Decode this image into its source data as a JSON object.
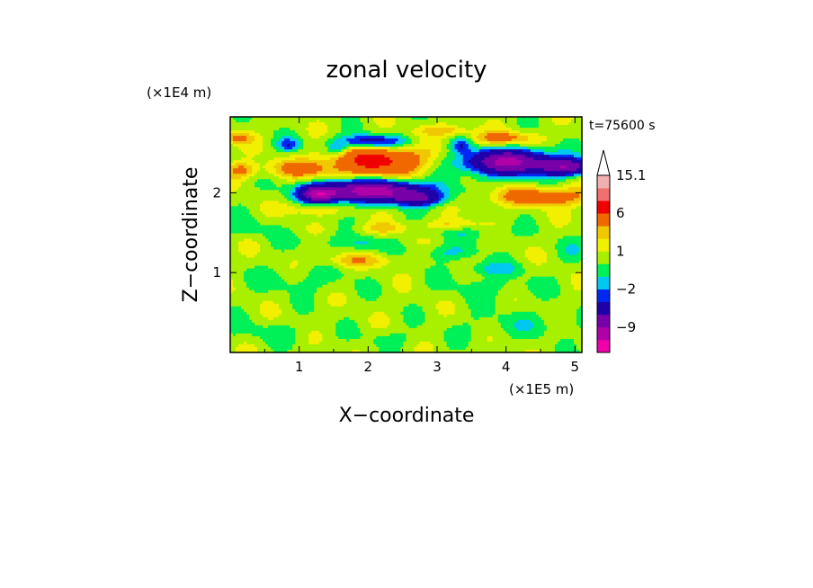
{
  "chart_data": {
    "type": "heatmap",
    "title": "zonal velocity",
    "xlabel": "X−coordinate",
    "ylabel": "Z−coordinate",
    "x_unit": "(×1E5 m)",
    "y_unit": "(×1E4 m)",
    "time_label": "t=75600 s",
    "xlim": [
      0,
      5.1
    ],
    "ylim": [
      0,
      2.95
    ],
    "x_ticks": [
      1,
      2,
      3,
      4,
      5
    ],
    "x_tick_labels": [
      "1",
      "2",
      "3",
      "4",
      "5"
    ],
    "y_ticks": [
      1,
      2
    ],
    "y_tick_labels": [
      "1",
      "2"
    ],
    "colorbar": {
      "levels": [
        -15,
        -12,
        -9,
        -6,
        -3,
        -2,
        -1,
        0,
        1,
        2,
        3,
        6,
        9,
        12,
        15.1
      ],
      "colors": [
        "#f000a8",
        "#b000a8",
        "#7800a8",
        "#2000a8",
        "#0028f0",
        "#00c8f0",
        "#00f058",
        "#a8f000",
        "#f0f000",
        "#f0c800",
        "#f06800",
        "#f00000",
        "#f07070",
        "#f0b0b0"
      ],
      "tick_labels": [
        "15.1",
        "6",
        "1",
        "−2",
        "−9"
      ],
      "tick_values": [
        15.1,
        6,
        1,
        -2,
        -9
      ],
      "extend": "max"
    },
    "field": {
      "background_value": 0.5,
      "blobs": [
        {
          "x": 2.05,
          "z": 2.02,
          "sx": 0.55,
          "sz": 0.09,
          "v": -11
        },
        {
          "x": 1.3,
          "z": 1.98,
          "sx": 0.18,
          "sz": 0.07,
          "v": -9
        },
        {
          "x": 2.75,
          "z": 1.92,
          "sx": 0.25,
          "sz": 0.06,
          "v": -5
        },
        {
          "x": 4.05,
          "z": 2.38,
          "sx": 0.45,
          "sz": 0.11,
          "v": -10
        },
        {
          "x": 4.9,
          "z": 2.32,
          "sx": 0.25,
          "sz": 0.07,
          "v": -8
        },
        {
          "x": 2.05,
          "z": 2.64,
          "sx": 0.35,
          "sz": 0.06,
          "v": -5
        },
        {
          "x": 3.35,
          "z": 2.6,
          "sx": 0.1,
          "sz": 0.07,
          "v": -3
        },
        {
          "x": 1.55,
          "z": 2.55,
          "sx": 0.1,
          "sz": 0.06,
          "v": -2.5
        },
        {
          "x": 0.85,
          "z": 2.6,
          "sx": 0.12,
          "sz": 0.06,
          "v": -3
        },
        {
          "x": 2.15,
          "z": 2.4,
          "sx": 0.45,
          "sz": 0.13,
          "v": 6.5
        },
        {
          "x": 1.05,
          "z": 2.3,
          "sx": 0.35,
          "sz": 0.08,
          "v": 3.2
        },
        {
          "x": 0.15,
          "z": 2.28,
          "sx": 0.15,
          "sz": 0.07,
          "v": 3
        },
        {
          "x": 0.1,
          "z": 2.68,
          "sx": 0.15,
          "sz": 0.05,
          "v": 3
        },
        {
          "x": 4.55,
          "z": 1.95,
          "sx": 0.5,
          "sz": 0.08,
          "v": 4.2
        },
        {
          "x": 3.95,
          "z": 2.68,
          "sx": 0.35,
          "sz": 0.06,
          "v": 3.2
        },
        {
          "x": 3.1,
          "z": 2.78,
          "sx": 0.25,
          "sz": 0.05,
          "v": 2.5
        },
        {
          "x": 1.5,
          "z": 1.4,
          "sx": 0.45,
          "sz": 0.07,
          "v": -0.8
        },
        {
          "x": 1.95,
          "z": 1.35,
          "sx": 0.2,
          "sz": 0.06,
          "v": -1.3
        },
        {
          "x": 3.15,
          "z": 1.25,
          "sx": 0.3,
          "sz": 0.07,
          "v": -1.6
        },
        {
          "x": 3.8,
          "z": 1.05,
          "sx": 0.3,
          "sz": 0.06,
          "v": -1.8
        },
        {
          "x": 1.0,
          "z": 0.9,
          "sx": 0.55,
          "sz": 0.12,
          "v": -0.9
        },
        {
          "x": 3.8,
          "z": 0.82,
          "sx": 0.55,
          "sz": 0.11,
          "v": -0.9
        },
        {
          "x": 4.25,
          "z": 0.35,
          "sx": 0.7,
          "sz": 0.12,
          "v": -0.9
        },
        {
          "x": 0.5,
          "z": 0.25,
          "sx": 0.5,
          "sz": 0.09,
          "v": -0.8
        },
        {
          "x": 2.35,
          "z": 0.18,
          "sx": 0.3,
          "sz": 0.07,
          "v": -0.8
        },
        {
          "x": 0.3,
          "z": 1.55,
          "sx": 0.3,
          "sz": 0.08,
          "v": -0.8
        },
        {
          "x": 3.55,
          "z": 1.5,
          "sx": 0.45,
          "sz": 0.07,
          "v": -0.9
        },
        {
          "x": 5.0,
          "z": 1.3,
          "sx": 0.15,
          "sz": 0.12,
          "v": -0.9
        },
        {
          "x": 1.85,
          "z": 1.15,
          "sx": 0.4,
          "sz": 0.06,
          "v": 2
        },
        {
          "x": 2.2,
          "z": 1.55,
          "sx": 0.25,
          "sz": 0.05,
          "v": 1.8
        },
        {
          "x": 3.2,
          "z": 1.6,
          "sx": 0.25,
          "sz": 0.05,
          "v": 1.8
        },
        {
          "x": 1.2,
          "z": 1.8,
          "sx": 0.3,
          "sz": 0.06,
          "v": 1.6
        }
      ]
    }
  }
}
